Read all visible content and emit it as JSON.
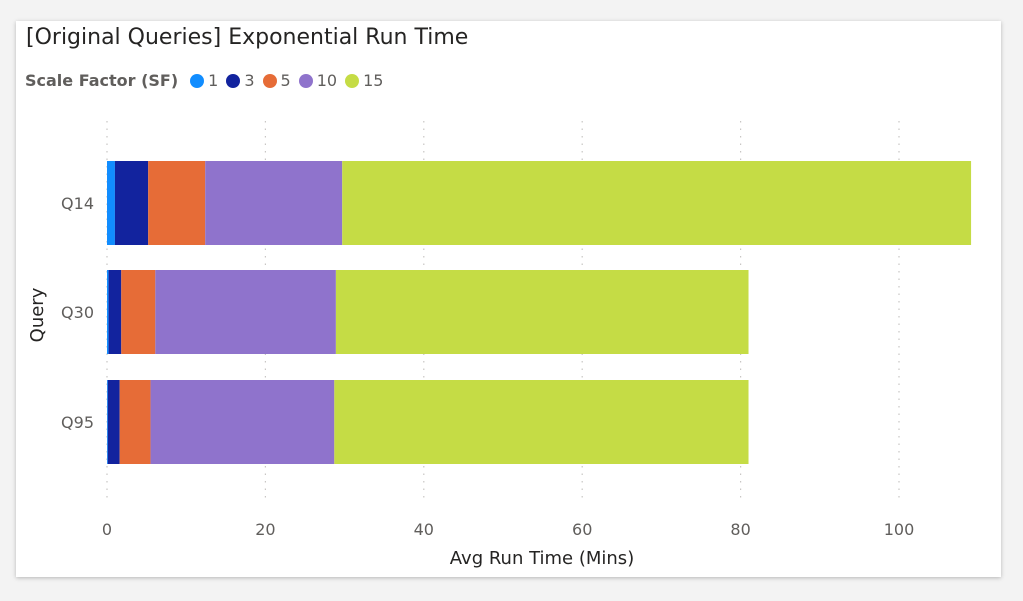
{
  "title": "[Original Queries] Exponential Run Time",
  "legend": {
    "title": "Scale Factor (SF)",
    "items": [
      {
        "label": "1",
        "color": "#118DFF"
      },
      {
        "label": "3",
        "color": "#12239E"
      },
      {
        "label": "5",
        "color": "#E66C37"
      },
      {
        "label": "10",
        "color": "#8F73CC"
      },
      {
        "label": "15",
        "color": "#C5DC45"
      }
    ]
  },
  "chart_data": {
    "type": "bar",
    "orientation": "horizontal",
    "stacked": true,
    "categories": [
      "Q14",
      "Q30",
      "Q95"
    ],
    "series": [
      {
        "name": "1",
        "color": "#118DFF",
        "values": [
          1.0,
          0.2,
          0.1
        ]
      },
      {
        "name": "3",
        "color": "#12239E",
        "values": [
          4.2,
          1.6,
          1.5
        ]
      },
      {
        "name": "5",
        "color": "#E66C37",
        "values": [
          7.2,
          4.3,
          3.9
        ]
      },
      {
        "name": "10",
        "color": "#8F73CC",
        "values": [
          17.3,
          22.8,
          23.2
        ]
      },
      {
        "name": "15",
        "color": "#C5DC45",
        "values": [
          79.4,
          52.1,
          52.3
        ]
      }
    ],
    "xlabel": "Avg Run Time (Mins)",
    "ylabel": "Query",
    "xlim": [
      0,
      110
    ],
    "xticks": [
      0,
      20,
      40,
      60,
      80,
      100
    ],
    "grid": true,
    "legend_position": "top-left"
  }
}
